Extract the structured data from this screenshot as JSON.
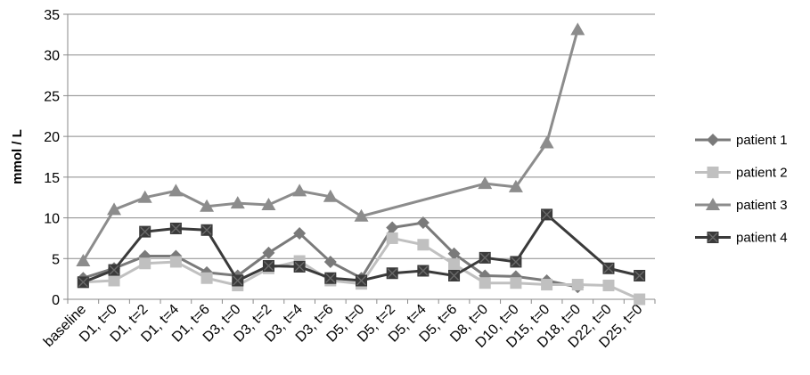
{
  "chart_data": {
    "type": "line",
    "title": "",
    "xlabel": "",
    "ylabel": "mmol / L",
    "ylim": [
      0,
      35
    ],
    "yticks": [
      0,
      5,
      10,
      15,
      20,
      25,
      30,
      35
    ],
    "grid": "horizontal",
    "legend_position": "right",
    "categories": [
      "baseline",
      "D1, t=0",
      "D1, t=2",
      "D1, t=4",
      "D1, t=6",
      "D3, t=0",
      "D3, t=2",
      "D3, t=4",
      "D3, t=6",
      "D5, t=0",
      "D5, t=2",
      "D5, t=4",
      "D5, t=6",
      "D8, t=0",
      "D10, t=0",
      "D15, t=0",
      "D18, t=0",
      "D22, t=0",
      "D25, t=0"
    ],
    "series": [
      {
        "name": "patient 1",
        "marker": "diamond",
        "color": "#7a7a7a",
        "values": [
          2.6,
          3.8,
          5.3,
          5.3,
          3.3,
          2.9,
          5.7,
          8.1,
          4.6,
          2.6,
          8.8,
          9.4,
          5.6,
          2.9,
          2.8,
          2.3,
          1.5,
          null,
          null
        ]
      },
      {
        "name": "patient 2",
        "marker": "square",
        "color": "#c0c0c0",
        "values": [
          2.1,
          2.3,
          4.4,
          4.6,
          2.6,
          1.7,
          3.8,
          4.7,
          2.3,
          1.9,
          7.5,
          6.7,
          4.3,
          2.0,
          2.0,
          1.8,
          1.8,
          1.7,
          0.0
        ]
      },
      {
        "name": "patient 3",
        "marker": "triangle",
        "color": "#8c8c8c",
        "values": [
          4.7,
          11.0,
          12.5,
          13.3,
          11.4,
          11.8,
          11.6,
          13.3,
          12.6,
          10.2,
          null,
          null,
          null,
          14.2,
          13.8,
          19.2,
          33.1,
          null,
          null
        ]
      },
      {
        "name": "patient 4",
        "marker": "square-x",
        "color": "#3a3a3a",
        "values": [
          2.1,
          3.6,
          8.3,
          8.7,
          8.5,
          2.3,
          4.1,
          4.0,
          2.6,
          2.3,
          3.2,
          3.5,
          2.9,
          5.1,
          4.6,
          10.4,
          null,
          3.8,
          2.9
        ]
      }
    ]
  }
}
